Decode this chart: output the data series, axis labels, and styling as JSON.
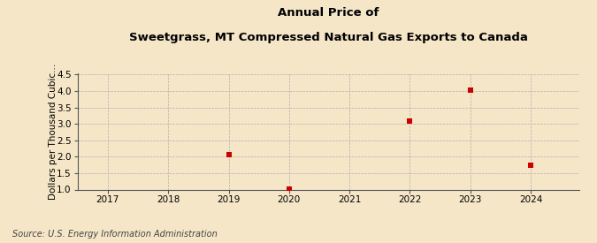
{
  "title_line1": "Annual Price of",
  "title_line2": "Sweetgrass, MT Compressed Natural Gas Exports to Canada",
  "ylabel": "Dollars per Thousand Cubic...",
  "years": [
    2019,
    2020,
    2022,
    2023,
    2024
  ],
  "values": [
    2.07,
    1.02,
    3.08,
    4.03,
    1.73
  ],
  "xlim": [
    2016.5,
    2024.8
  ],
  "ylim": [
    1.0,
    4.55
  ],
  "yticks": [
    1.0,
    1.5,
    2.0,
    2.5,
    3.0,
    3.5,
    4.0,
    4.5
  ],
  "xticks": [
    2017,
    2018,
    2019,
    2020,
    2021,
    2022,
    2023,
    2024
  ],
  "marker_color": "#cc0000",
  "marker_size": 5,
  "background_color": "#f5e6c8",
  "grid_color": "#aaaaaa",
  "source_text": "Source: U.S. Energy Information Administration",
  "title_fontsize": 9.5,
  "axis_fontsize": 7.5,
  "ylabel_fontsize": 7.5,
  "source_fontsize": 7.0
}
